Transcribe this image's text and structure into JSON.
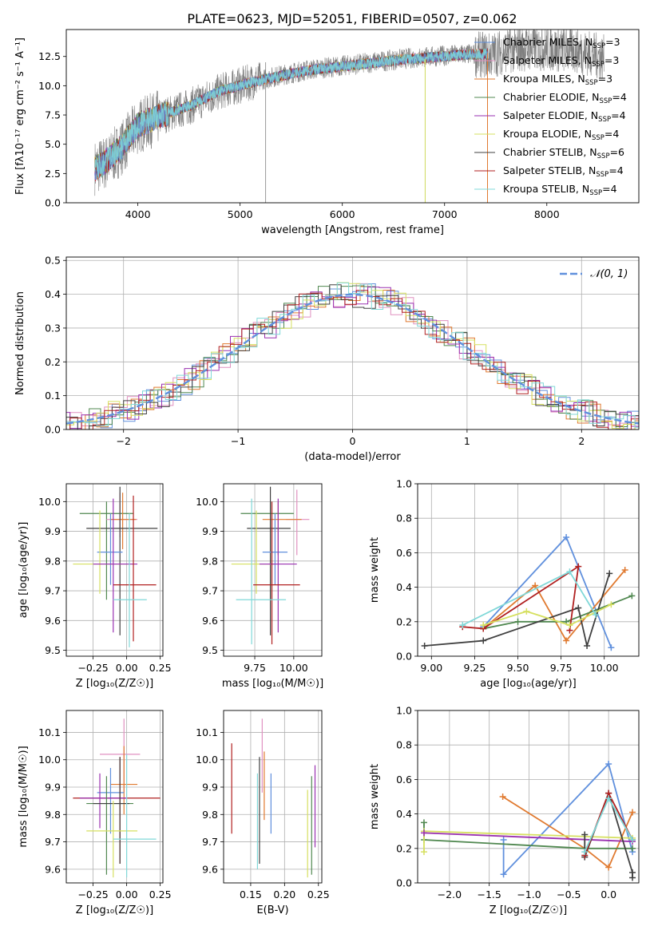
{
  "figure_title": "PLATE=0623, MJD=52051, FIBERID=0507, z=0.062",
  "colors": {
    "chabrier_miles": "#6090dd",
    "salpeter_miles": "#e090c0",
    "kroupa_miles": "#e07a30",
    "chabrier_elodie": "#508850",
    "salpeter_elodie": "#9a30b0",
    "kroupa_elodie": "#d6e060",
    "chabrier_stelib": "#404040",
    "salpeter_stelib": "#b02020",
    "kroupa_stelib": "#80d8d8",
    "data": "#808080",
    "grid": "#b0b0b0"
  },
  "chart_data": [
    {
      "id": "spectrum",
      "type": "line",
      "xlabel": "wavelength [Angstrom, rest frame]",
      "ylabel": "Flux [fλ10⁻¹⁷ erg cm⁻² s⁻¹ A⁻¹]",
      "xlim": [
        3300,
        8900
      ],
      "ylim": [
        0,
        14.8
      ],
      "xticks": [
        4000,
        5000,
        6000,
        7000,
        8000
      ],
      "yticks": [
        0.0,
        2.5,
        5.0,
        7.5,
        10.0,
        12.5
      ],
      "grid": false,
      "legend_position": "top-right",
      "legend": [
        {
          "pre": "Chabrier MILES, N",
          "sub": "SSP",
          "post": "=3",
          "color": "chabrier_miles"
        },
        {
          "pre": "Salpeter MILES, N",
          "sub": "SSP",
          "post": "=3",
          "color": "salpeter_miles"
        },
        {
          "pre": "Kroupa MILES, N",
          "sub": "SSP",
          "post": "=3",
          "color": "kroupa_miles"
        },
        {
          "pre": "Chabrier ELODIE, N",
          "sub": "SSP",
          "post": "=4",
          "color": "chabrier_elodie"
        },
        {
          "pre": "Salpeter ELODIE, N",
          "sub": "SSP",
          "post": "=4",
          "color": "salpeter_elodie"
        },
        {
          "pre": "Kroupa ELODIE, N",
          "sub": "SSP",
          "post": "=4",
          "color": "kroupa_elodie"
        },
        {
          "pre": "Chabrier STELIB, N",
          "sub": "SSP",
          "post": "=6",
          "color": "chabrier_stelib"
        },
        {
          "pre": "Salpeter STELIB, N",
          "sub": "SSP",
          "post": "=4",
          "color": "salpeter_stelib"
        },
        {
          "pre": "Kroupa STELIB, N",
          "sub": "SSP",
          "post": "=4",
          "color": "kroupa_stelib"
        }
      ],
      "data_envelope": {
        "x": [
          3580,
          3700,
          3850,
          4000,
          4200,
          4500,
          4800,
          5100,
          5400,
          5700,
          6000,
          6300,
          6600,
          6900,
          7200,
          7450,
          7600,
          7800,
          8000,
          8300,
          8560
        ],
        "y": [
          3.0,
          3.5,
          4.8,
          6.5,
          7.3,
          8.2,
          9.5,
          10.3,
          10.9,
          11.4,
          11.7,
          12.0,
          12.3,
          12.5,
          12.7,
          12.6,
          13.0,
          13.2,
          13.2,
          13.0,
          12.4
        ]
      },
      "model_envelope": {
        "x": [
          3580,
          3700,
          3850,
          4000,
          4200,
          4500,
          4800,
          5100,
          5400,
          5700,
          6000,
          6300,
          6600,
          6900,
          7200,
          7420
        ],
        "y": [
          3.0,
          3.8,
          5.0,
          6.8,
          7.5,
          8.4,
          9.7,
          10.4,
          11.0,
          11.5,
          11.8,
          12.1,
          12.4,
          12.6,
          12.8,
          12.9
        ]
      }
    },
    {
      "id": "residuals",
      "type": "step",
      "xlabel": "(data-model)/error",
      "ylabel": "Normed distribution",
      "xlim": [
        -2.5,
        2.5
      ],
      "ylim": [
        0,
        0.51
      ],
      "xticks": [
        -2,
        -1,
        0,
        1,
        2
      ],
      "yticks": [
        0.0,
        0.1,
        0.2,
        0.3,
        0.4,
        0.5
      ],
      "grid": true,
      "legend_position": "top-right",
      "legend": [
        {
          "label": "𝒩(0, 1)",
          "style": "dashed",
          "color": "chabrier_miles"
        }
      ],
      "gaussian": {
        "mean": 0,
        "sigma": 1
      },
      "bin_width": 0.1
    },
    {
      "id": "age-vs-z",
      "type": "errorbar",
      "xlabel": "Z [log₁₀(Z/Z☉)]",
      "ylabel": "age  [log₁₀(age/yr)]",
      "xlim": [
        -0.45,
        0.27
      ],
      "ylim": [
        9.48,
        10.06
      ],
      "xticks": [
        -0.25,
        0.0,
        0.25
      ],
      "xtick_labels": [
        "−0.25",
        "0.00",
        "0.25"
      ],
      "yticks": [
        9.5,
        9.6,
        9.7,
        9.8,
        9.9,
        10.0
      ],
      "grid": true,
      "points": [
        {
          "x": -0.15,
          "y": 9.96,
          "xlo": -0.35,
          "xhi": 0.05,
          "ylo": 9.67,
          "yhi": 10.0,
          "color": "chabrier_elodie"
        },
        {
          "x": -0.05,
          "y": 9.94,
          "xlo": -0.15,
          "xhi": 0.08,
          "ylo": 9.88,
          "yhi": 10.03,
          "color": "salpeter_miles"
        },
        {
          "x": -0.03,
          "y": 9.94,
          "xlo": -0.12,
          "xhi": 0.07,
          "ylo": 9.84,
          "yhi": 10.03,
          "color": "kroupa_miles"
        },
        {
          "x": -0.05,
          "y": 9.91,
          "xlo": -0.3,
          "xhi": 0.23,
          "ylo": 9.55,
          "yhi": 10.05,
          "color": "chabrier_stelib"
        },
        {
          "x": -0.12,
          "y": 9.83,
          "xlo": -0.22,
          "xhi": -0.03,
          "ylo": 9.72,
          "yhi": 9.96,
          "color": "chabrier_miles"
        },
        {
          "x": -0.2,
          "y": 9.79,
          "xlo": -0.4,
          "xhi": 0.05,
          "ylo": 9.69,
          "yhi": 9.97,
          "color": "kroupa_elodie"
        },
        {
          "x": -0.1,
          "y": 9.79,
          "xlo": -0.25,
          "xhi": 0.08,
          "ylo": 9.56,
          "yhi": 10.01,
          "color": "salpeter_elodie"
        },
        {
          "x": 0.05,
          "y": 9.72,
          "xlo": -0.1,
          "xhi": 0.22,
          "ylo": 9.53,
          "yhi": 10.02,
          "color": "salpeter_stelib"
        },
        {
          "x": 0.02,
          "y": 9.67,
          "xlo": -0.1,
          "xhi": 0.15,
          "ylo": 9.51,
          "yhi": 9.96,
          "color": "kroupa_stelib"
        }
      ]
    },
    {
      "id": "age-vs-mass",
      "type": "errorbar",
      "xlabel": "mass [log₁₀(M/M☉)]",
      "ylabel": "",
      "xlim": [
        9.55,
        10.18
      ],
      "ylim": [
        9.48,
        10.06
      ],
      "xticks": [
        9.75,
        10.0
      ],
      "xtick_labels": [
        "9.75",
        "10.00"
      ],
      "yticks": [
        9.5,
        9.6,
        9.7,
        9.8,
        9.9,
        10.0
      ],
      "grid": true,
      "points": [
        {
          "x": 9.85,
          "y": 9.96,
          "xlo": 9.66,
          "xhi": 10.0,
          "ylo": 9.67,
          "yhi": 10.0,
          "color": "chabrier_elodie"
        },
        {
          "x": 10.02,
          "y": 9.94,
          "xlo": 9.95,
          "xhi": 10.1,
          "ylo": 9.82,
          "yhi": 10.04,
          "color": "salpeter_miles"
        },
        {
          "x": 9.9,
          "y": 9.94,
          "xlo": 9.8,
          "xhi": 10.05,
          "ylo": 9.82,
          "yhi": 10.0,
          "color": "kroupa_miles"
        },
        {
          "x": 9.85,
          "y": 9.91,
          "xlo": 9.7,
          "xhi": 9.98,
          "ylo": 9.55,
          "yhi": 10.05,
          "color": "chabrier_stelib"
        },
        {
          "x": 9.88,
          "y": 9.83,
          "xlo": 9.8,
          "xhi": 9.96,
          "ylo": 9.72,
          "yhi": 9.96,
          "color": "chabrier_miles"
        },
        {
          "x": 9.76,
          "y": 9.79,
          "xlo": 9.6,
          "xhi": 9.88,
          "ylo": 9.69,
          "yhi": 9.97,
          "color": "kroupa_elodie"
        },
        {
          "x": 9.9,
          "y": 9.79,
          "xlo": 9.78,
          "xhi": 10.02,
          "ylo": 9.56,
          "yhi": 10.01,
          "color": "salpeter_elodie"
        },
        {
          "x": 9.86,
          "y": 9.72,
          "xlo": 9.74,
          "xhi": 10.04,
          "ylo": 9.52,
          "yhi": 10.0,
          "color": "salpeter_stelib"
        },
        {
          "x": 9.73,
          "y": 9.67,
          "xlo": 9.63,
          "xhi": 9.95,
          "ylo": 9.52,
          "yhi": 10.01,
          "color": "kroupa_stelib"
        }
      ]
    },
    {
      "id": "weight-vs-age",
      "type": "line",
      "xlabel": "age  [log₁₀(age/yr)]",
      "ylabel": "mass weight",
      "xlim": [
        8.92,
        10.2
      ],
      "ylim": [
        0,
        1.0
      ],
      "xticks": [
        9.0,
        9.25,
        9.5,
        9.75,
        10.0
      ],
      "xtick_labels": [
        "9.00",
        "9.25",
        "9.50",
        "9.75",
        "10.00"
      ],
      "yticks": [
        0.0,
        0.2,
        0.4,
        0.6,
        0.8,
        1.0
      ],
      "grid": true,
      "series": [
        {
          "color": "chabrier_miles",
          "x": [
            9.3,
            9.78,
            10.04
          ],
          "y": [
            0.17,
            0.69,
            0.05
          ]
        },
        {
          "color": "kroupa_miles",
          "x": [
            9.3,
            9.6,
            9.78,
            10.12
          ],
          "y": [
            0.16,
            0.41,
            0.09,
            0.5
          ]
        },
        {
          "color": "chabrier_elodie",
          "x": [
            9.3,
            9.5,
            9.78,
            10.16
          ],
          "y": [
            0.16,
            0.2,
            0.2,
            0.35
          ]
        },
        {
          "color": "chabrier_stelib",
          "x": [
            8.96,
            9.3,
            9.85,
            9.9,
            10.03
          ],
          "y": [
            0.06,
            0.09,
            0.28,
            0.06,
            0.48
          ]
        },
        {
          "color": "salpeter_stelib",
          "x": [
            9.18,
            9.3,
            9.85,
            9.8
          ],
          "y": [
            0.17,
            0.16,
            0.52,
            0.15
          ]
        },
        {
          "color": "kroupa_elodie",
          "x": [
            9.3,
            9.55,
            9.8,
            10.04
          ],
          "y": [
            0.18,
            0.26,
            0.18,
            0.3
          ]
        },
        {
          "color": "kroupa_stelib",
          "x": [
            9.18,
            9.8,
            9.95
          ],
          "y": [
            0.18,
            0.49,
            0.24
          ]
        }
      ]
    },
    {
      "id": "mass-vs-z",
      "type": "errorbar",
      "xlabel": "Z [log₁₀(Z/Z☉)]",
      "ylabel": "mass [log₁₀(M/M☉)]",
      "xlim": [
        -0.45,
        0.27
      ],
      "ylim": [
        9.55,
        10.18
      ],
      "xticks": [
        -0.25,
        0.0,
        0.25
      ],
      "xtick_labels": [
        "−0.25",
        "0.00",
        "0.25"
      ],
      "yticks": [
        9.6,
        9.7,
        9.8,
        9.9,
        10.0,
        10.1
      ],
      "grid": true,
      "points": [
        {
          "x": -0.02,
          "y": 10.02,
          "xlo": -0.2,
          "xhi": 0.1,
          "ylo": 9.88,
          "yhi": 10.15,
          "color": "salpeter_miles"
        },
        {
          "x": -0.02,
          "y": 9.91,
          "xlo": -0.12,
          "xhi": 0.08,
          "ylo": 9.8,
          "yhi": 10.05,
          "color": "kroupa_miles"
        },
        {
          "x": -0.12,
          "y": 9.88,
          "xlo": -0.22,
          "xhi": -0.02,
          "ylo": 9.73,
          "yhi": 9.97,
          "color": "chabrier_miles"
        },
        {
          "x": -0.05,
          "y": 9.86,
          "xlo": -0.4,
          "xhi": 0.25,
          "ylo": 9.62,
          "yhi": 10.01,
          "color": "salpeter_stelib"
        },
        {
          "x": -0.2,
          "y": 9.86,
          "xlo": -0.35,
          "xhi": 0.0,
          "ylo": 9.75,
          "yhi": 9.95,
          "color": "salpeter_elodie"
        },
        {
          "x": -0.15,
          "y": 9.84,
          "xlo": -0.3,
          "xhi": 0.05,
          "ylo": 9.58,
          "yhi": 9.94,
          "color": "chabrier_elodie"
        },
        {
          "x": -0.05,
          "y": 9.84,
          "xlo": -0.25,
          "xhi": 0.02,
          "ylo": 9.62,
          "yhi": 10.01,
          "color": "chabrier_stelib"
        },
        {
          "x": -0.1,
          "y": 9.74,
          "xlo": -0.3,
          "xhi": 0.08,
          "ylo": 9.57,
          "yhi": 9.85,
          "color": "kroupa_elodie"
        },
        {
          "x": 0.0,
          "y": 9.71,
          "xlo": -0.1,
          "xhi": 0.22,
          "ylo": 9.57,
          "yhi": 10.02,
          "color": "kroupa_stelib"
        }
      ]
    },
    {
      "id": "mass-vs-ebv",
      "type": "errorbar",
      "xlabel": "E(B-V)",
      "ylabel": "",
      "xlim": [
        0.11,
        0.255
      ],
      "ylim": [
        9.55,
        10.18
      ],
      "xticks": [
        0.15,
        0.2,
        0.25
      ],
      "xtick_labels": [
        "0.15",
        "0.20",
        "0.25"
      ],
      "yticks": [
        9.6,
        9.7,
        9.8,
        9.9,
        10.0,
        10.1
      ],
      "grid": true,
      "points": [
        {
          "x": 0.122,
          "y": 9.9,
          "ylo": 9.73,
          "yhi": 10.06,
          "color": "salpeter_stelib"
        },
        {
          "x": 0.16,
          "y": 9.78,
          "ylo": 9.6,
          "yhi": 9.95,
          "color": "kroupa_stelib"
        },
        {
          "x": 0.163,
          "y": 9.84,
          "ylo": 9.62,
          "yhi": 10.01,
          "color": "chabrier_stelib"
        },
        {
          "x": 0.167,
          "y": 10.02,
          "ylo": 9.88,
          "yhi": 10.15,
          "color": "salpeter_miles"
        },
        {
          "x": 0.17,
          "y": 9.91,
          "ylo": 9.78,
          "yhi": 10.03,
          "color": "kroupa_miles"
        },
        {
          "x": 0.18,
          "y": 9.84,
          "ylo": 9.73,
          "yhi": 9.95,
          "color": "chabrier_miles"
        },
        {
          "x": 0.234,
          "y": 9.74,
          "ylo": 9.57,
          "yhi": 9.89,
          "color": "kroupa_elodie"
        },
        {
          "x": 0.24,
          "y": 9.8,
          "ylo": 9.58,
          "yhi": 9.94,
          "color": "chabrier_elodie"
        },
        {
          "x": 0.245,
          "y": 9.84,
          "ylo": 9.68,
          "yhi": 9.98,
          "color": "salpeter_elodie"
        }
      ]
    },
    {
      "id": "weight-vs-z",
      "type": "line",
      "xlabel": "Z [log₁₀(Z/Z☉)]",
      "ylabel": "mass weight",
      "xlim": [
        -2.4,
        0.38
      ],
      "ylim": [
        0,
        1.0
      ],
      "xticks": [
        -2.0,
        -1.5,
        -1.0,
        -0.5,
        0.0
      ],
      "xtick_labels": [
        "−2.0",
        "−1.5",
        "−1.0",
        "−0.5",
        "0.0"
      ],
      "yticks": [
        0.0,
        0.2,
        0.4,
        0.6,
        0.8,
        1.0
      ],
      "grid": true,
      "series": [
        {
          "color": "chabrier_miles",
          "x": [
            -1.32,
            -1.32,
            0.0,
            0.3
          ],
          "y": [
            0.25,
            0.05,
            0.69,
            0.18
          ]
        },
        {
          "color": "kroupa_miles",
          "x": [
            -1.33,
            -0.3,
            0.0,
            0.3
          ],
          "y": [
            0.5,
            0.2,
            0.09,
            0.41
          ]
        },
        {
          "color": "chabrier_elodie",
          "x": [
            -2.32,
            -2.32,
            -0.3,
            0.3
          ],
          "y": [
            0.35,
            0.25,
            0.2,
            0.2
          ]
        },
        {
          "color": "kroupa_elodie",
          "x": [
            -2.32,
            -2.32,
            0.3
          ],
          "y": [
            0.18,
            0.3,
            0.26
          ]
        },
        {
          "color": "salpeter_elodie",
          "x": [
            -2.32,
            0.3
          ],
          "y": [
            0.29,
            0.24
          ]
        },
        {
          "color": "chabrier_stelib",
          "x": [
            -0.3,
            -0.3,
            0.0,
            0.3,
            0.3
          ],
          "y": [
            0.28,
            0.15,
            0.52,
            0.06,
            0.03
          ]
        },
        {
          "color": "salpeter_stelib",
          "x": [
            -0.3,
            0.0,
            0.3
          ],
          "y": [
            0.16,
            0.52,
            0.25
          ]
        },
        {
          "color": "kroupa_stelib",
          "x": [
            -0.3,
            0.0,
            0.3
          ],
          "y": [
            0.18,
            0.49,
            0.25
          ]
        }
      ]
    }
  ]
}
